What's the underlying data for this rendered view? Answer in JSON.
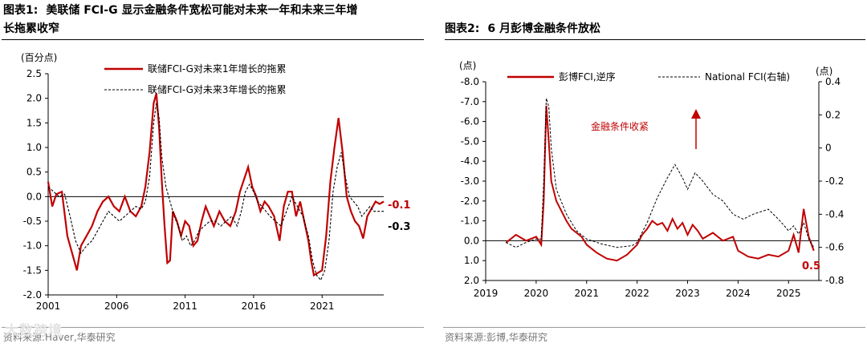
{
  "charts": [
    {
      "id": "chart1",
      "title_label": "图表1:",
      "title_line1": "美联储 FCI-G 显示金融条件宽松可能对未来一年和未来三年增",
      "title_line2": "长拖累收窄",
      "source": "资料来源:Haver,华泰研究",
      "unit_label": "(百分点)"
    },
    {
      "id": "chart2",
      "title_label": "图表2:",
      "title_line1": "6 月彭博金融条件放松",
      "source": "资料来源:彭博,华泰研究",
      "unit_left": "(点)",
      "unit_right": "(点)",
      "annotation": "金融条件收紧"
    }
  ],
  "watermark": "大数跨境",
  "colors": {
    "red": "#c00000",
    "black": "#000000"
  },
  "chart_data": [
    {
      "type": "line",
      "title": "美联储 FCI-G 显示金融条件宽松可能对未来一年和未来三年增长拖累收窄",
      "ylabel": "(百分点)",
      "ylim": [
        -2.0,
        2.5
      ],
      "yticks": [
        "2.5",
        "2.0",
        "1.5",
        "1.0",
        "0.5",
        "0.0",
        "-0.5",
        "-1.0",
        "-1.5",
        "-2.0"
      ],
      "xlim": [
        2001,
        2025.5
      ],
      "xticks": [
        "2001",
        "2006",
        "2011",
        "2016",
        "2021"
      ],
      "legend": "top",
      "series": [
        {
          "name": "联储FCI-G对未来1年增长的拖累",
          "color": "#c00000",
          "style": "solid",
          "x": [
            2001.0,
            2001.3,
            2001.6,
            2002.0,
            2002.4,
            2002.8,
            2003.1,
            2003.4,
            2003.8,
            2004.2,
            2004.6,
            2005.0,
            2005.4,
            2005.8,
            2006.2,
            2006.6,
            2007.0,
            2007.4,
            2007.8,
            2008.1,
            2008.4,
            2008.7,
            2008.9,
            2009.1,
            2009.3,
            2009.5,
            2009.7,
            2009.9,
            2010.1,
            2010.4,
            2010.7,
            2011.0,
            2011.3,
            2011.6,
            2011.9,
            2012.2,
            2012.5,
            2012.8,
            2013.1,
            2013.5,
            2013.9,
            2014.3,
            2014.7,
            2015.0,
            2015.3,
            2015.6,
            2015.9,
            2016.2,
            2016.5,
            2016.8,
            2017.1,
            2017.5,
            2017.9,
            2018.2,
            2018.5,
            2018.8,
            2019.1,
            2019.4,
            2019.7,
            2020.0,
            2020.2,
            2020.4,
            2020.7,
            2021.0,
            2021.3,
            2021.6,
            2021.9,
            2022.2,
            2022.5,
            2022.8,
            2023.1,
            2023.4,
            2023.7,
            2024.0,
            2024.3,
            2024.6,
            2024.9,
            2025.2,
            2025.5
          ],
          "y": [
            0.3,
            -0.2,
            0.05,
            0.1,
            -0.8,
            -1.2,
            -1.5,
            -1.0,
            -0.8,
            -0.6,
            -0.3,
            -0.1,
            0.0,
            -0.2,
            -0.3,
            0.0,
            -0.3,
            -0.4,
            -0.2,
            0.2,
            0.9,
            1.9,
            2.1,
            1.4,
            0.3,
            -0.6,
            -1.35,
            -1.3,
            -0.3,
            -0.5,
            -0.8,
            -0.5,
            -0.6,
            -1.0,
            -0.9,
            -0.5,
            -0.2,
            -0.4,
            -0.6,
            -0.3,
            -0.5,
            -0.6,
            -0.3,
            0.1,
            0.35,
            0.6,
            0.2,
            0.0,
            -0.3,
            -0.1,
            -0.2,
            -0.4,
            -0.9,
            -0.2,
            0.1,
            0.1,
            -0.4,
            -0.1,
            -0.5,
            -0.9,
            -1.3,
            -1.6,
            -1.55,
            -1.5,
            -0.8,
            0.3,
            1.0,
            1.6,
            0.9,
            0.0,
            -0.3,
            -0.5,
            -0.6,
            -0.85,
            -0.4,
            -0.25,
            -0.1,
            -0.15,
            -0.1
          ]
        },
        {
          "name": "联储FCI-G对未来3年增长的拖累",
          "color": "#000000",
          "style": "dashed",
          "x": [
            2001.0,
            2001.4,
            2001.8,
            2002.2,
            2002.6,
            2003.0,
            2003.4,
            2003.8,
            2004.2,
            2004.6,
            2005.0,
            2005.4,
            2005.8,
            2006.2,
            2006.6,
            2007.0,
            2007.4,
            2007.8,
            2008.1,
            2008.4,
            2008.7,
            2008.9,
            2009.1,
            2009.3,
            2009.6,
            2009.9,
            2010.2,
            2010.5,
            2010.8,
            2011.1,
            2011.4,
            2011.7,
            2012.0,
            2012.4,
            2012.8,
            2013.2,
            2013.6,
            2014.0,
            2014.4,
            2014.8,
            2015.1,
            2015.4,
            2015.7,
            2016.0,
            2016.3,
            2016.6,
            2016.9,
            2017.2,
            2017.6,
            2018.0,
            2018.4,
            2018.8,
            2019.2,
            2019.6,
            2020.0,
            2020.3,
            2020.6,
            2020.9,
            2021.2,
            2021.5,
            2021.8,
            2022.1,
            2022.4,
            2022.7,
            2023.0,
            2023.3,
            2023.6,
            2023.9,
            2024.2,
            2024.5,
            2024.8,
            2025.1,
            2025.5
          ],
          "y": [
            0.2,
            0.1,
            0.0,
            0.05,
            -0.4,
            -0.9,
            -1.15,
            -1.0,
            -0.9,
            -0.7,
            -0.5,
            -0.3,
            -0.4,
            -0.5,
            -0.4,
            -0.3,
            -0.2,
            -0.25,
            -0.1,
            0.4,
            1.5,
            1.9,
            1.6,
            0.8,
            0.2,
            -0.1,
            -0.4,
            -0.6,
            -0.9,
            -0.8,
            -1.0,
            -0.9,
            -0.7,
            -0.6,
            -0.5,
            -0.5,
            -0.6,
            -0.5,
            -0.4,
            -0.6,
            -0.3,
            0.1,
            0.25,
            0.1,
            -0.1,
            -0.2,
            -0.3,
            -0.4,
            -0.5,
            -0.6,
            -0.3,
            0.0,
            -0.2,
            -0.4,
            -0.8,
            -1.3,
            -1.6,
            -1.7,
            -1.5,
            -0.9,
            0.1,
            0.6,
            0.9,
            0.4,
            0.0,
            -0.1,
            -0.2,
            -0.4,
            -0.3,
            -0.2,
            -0.3,
            -0.3,
            -0.3
          ]
        }
      ],
      "end_labels": [
        {
          "text": "-0.1",
          "color": "#c00000",
          "value": -0.1
        },
        {
          "text": "-0.3",
          "color": "#000000",
          "value": -0.3
        }
      ]
    },
    {
      "type": "line",
      "title": "6 月彭博金融条件放松",
      "ylabel": "(点)",
      "ylim_left": [
        2.0,
        -8.0
      ],
      "yticks_left": [
        "-8.0",
        "-7.0",
        "-6.0",
        "-5.0",
        "-4.0",
        "-3.0",
        "-2.0",
        "-1.0",
        "0.0",
        "1.0",
        "2.0"
      ],
      "ylim_right": [
        -0.8,
        0.4
      ],
      "yticks_right": [
        "0.4",
        "0.2",
        "0",
        "-0.2",
        "-0.4",
        "-0.6",
        "-0.8"
      ],
      "xlim": [
        2019,
        2025.6
      ],
      "xticks": [
        "2019",
        "2020",
        "2021",
        "2022",
        "2023",
        "2024",
        "2025"
      ],
      "legend": "top",
      "series": [
        {
          "name": "彭博FCI,逆序",
          "axis": "left",
          "color": "#c00000",
          "style": "solid",
          "x": [
            2019.4,
            2019.6,
            2019.8,
            2020.0,
            2020.1,
            2020.15,
            2020.2,
            2020.25,
            2020.3,
            2020.4,
            2020.5,
            2020.6,
            2020.7,
            2020.8,
            2020.9,
            2021.0,
            2021.2,
            2021.4,
            2021.6,
            2021.8,
            2022.0,
            2022.1,
            2022.2,
            2022.3,
            2022.4,
            2022.5,
            2022.6,
            2022.7,
            2022.8,
            2022.9,
            2023.0,
            2023.1,
            2023.2,
            2023.3,
            2023.5,
            2023.7,
            2023.9,
            2024.0,
            2024.2,
            2024.4,
            2024.6,
            2024.8,
            2025.0,
            2025.1,
            2025.2,
            2025.3,
            2025.4,
            2025.5
          ],
          "y": [
            0.1,
            -0.3,
            0.0,
            -0.2,
            0.2,
            -2.0,
            -6.8,
            -5.0,
            -3.0,
            -2.0,
            -1.5,
            -1.0,
            -0.6,
            -0.4,
            -0.2,
            0.2,
            0.6,
            0.9,
            1.0,
            0.7,
            0.2,
            -0.3,
            -0.6,
            -1.0,
            -0.8,
            -0.9,
            -0.5,
            -1.1,
            -0.6,
            -0.9,
            -0.3,
            -0.8,
            -0.5,
            -0.1,
            -0.4,
            0.0,
            -0.2,
            0.5,
            0.8,
            0.9,
            0.7,
            0.8,
            0.5,
            -0.3,
            0.6,
            -1.6,
            -0.2,
            0.5
          ]
        },
        {
          "name": "National FCI(右轴)",
          "axis": "right",
          "color": "#000000",
          "style": "dashed",
          "x": [
            2019.4,
            2019.6,
            2019.8,
            2020.0,
            2020.1,
            2020.15,
            2020.2,
            2020.25,
            2020.3,
            2020.4,
            2020.6,
            2020.8,
            2021.0,
            2021.3,
            2021.6,
            2021.9,
            2022.0,
            2022.2,
            2022.4,
            2022.6,
            2022.75,
            2022.9,
            2023.0,
            2023.15,
            2023.3,
            2023.5,
            2023.7,
            2023.9,
            2024.1,
            2024.3,
            2024.6,
            2024.8,
            2025.0,
            2025.1,
            2025.2,
            2025.3,
            2025.4,
            2025.5
          ],
          "y": [
            -0.57,
            -0.6,
            -0.57,
            -0.55,
            -0.55,
            -0.2,
            0.3,
            0.25,
            0.0,
            -0.25,
            -0.4,
            -0.5,
            -0.55,
            -0.58,
            -0.6,
            -0.59,
            -0.57,
            -0.45,
            -0.3,
            -0.18,
            -0.1,
            -0.18,
            -0.25,
            -0.15,
            -0.2,
            -0.28,
            -0.32,
            -0.4,
            -0.43,
            -0.4,
            -0.37,
            -0.43,
            -0.5,
            -0.47,
            -0.52,
            -0.45,
            -0.55,
            -0.6
          ]
        }
      ],
      "end_labels": [
        {
          "text": "0.5",
          "color": "#c00000",
          "value": 0.5
        }
      ],
      "annotation": {
        "text": "金融条件收紧",
        "arrow": "up"
      }
    }
  ]
}
